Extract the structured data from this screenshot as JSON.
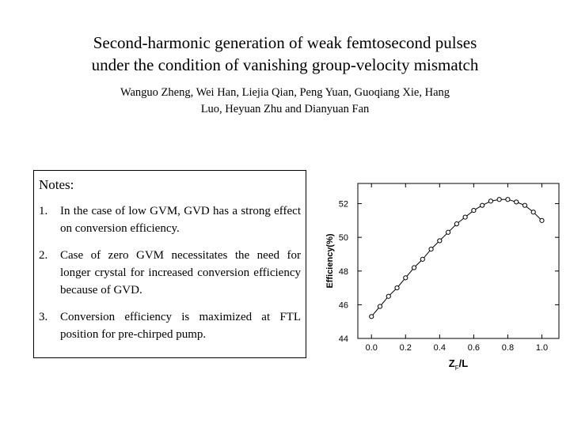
{
  "title": {
    "line1": "Second-harmonic generation of weak femtosecond pulses",
    "line2": "under the condition of vanishing group-velocity mismatch"
  },
  "authors": {
    "line1": "Wanguo Zheng, Wei Han, Liejia Qian, Peng Yuan, Guoqiang Xie, Hang",
    "line2": "Luo, Heyuan Zhu and Dianyuan Fan"
  },
  "notes": {
    "heading": "Notes:",
    "items": [
      {
        "num": "1.",
        "text": "In the case of low GVM, GVD has a strong effect on conversion efficiency."
      },
      {
        "num": "2.",
        "text": "Case of zero GVM necessitates the need for longer crystal for increased conversion efficiency because of GVD."
      },
      {
        "num": "3.",
        "text": "Conversion efficiency is maximized at FTL position for pre-chirped pump."
      }
    ]
  },
  "chart_data": {
    "type": "scatter",
    "xlabel_main": "Z",
    "xlabel_sub": "F",
    "xlabel_rest": "/L",
    "ylabel": "Efficiency(%)",
    "xlim": [
      -0.08,
      1.1
    ],
    "ylim": [
      44,
      53.2
    ],
    "xticks": [
      "0.0",
      "0.2",
      "0.4",
      "0.6",
      "0.8",
      "1.0"
    ],
    "yticks": [
      "44",
      "46",
      "48",
      "50",
      "52"
    ],
    "marker": "open-circle",
    "x": [
      0.0,
      0.05,
      0.1,
      0.15,
      0.2,
      0.25,
      0.3,
      0.35,
      0.4,
      0.45,
      0.5,
      0.55,
      0.6,
      0.65,
      0.7,
      0.75,
      0.8,
      0.85,
      0.9,
      0.95,
      1.0
    ],
    "y": [
      45.3,
      45.9,
      46.5,
      47.0,
      47.6,
      48.2,
      48.7,
      49.3,
      49.8,
      50.3,
      50.8,
      51.2,
      51.6,
      51.9,
      52.15,
      52.25,
      52.25,
      52.1,
      51.9,
      51.5,
      51.0
    ]
  }
}
